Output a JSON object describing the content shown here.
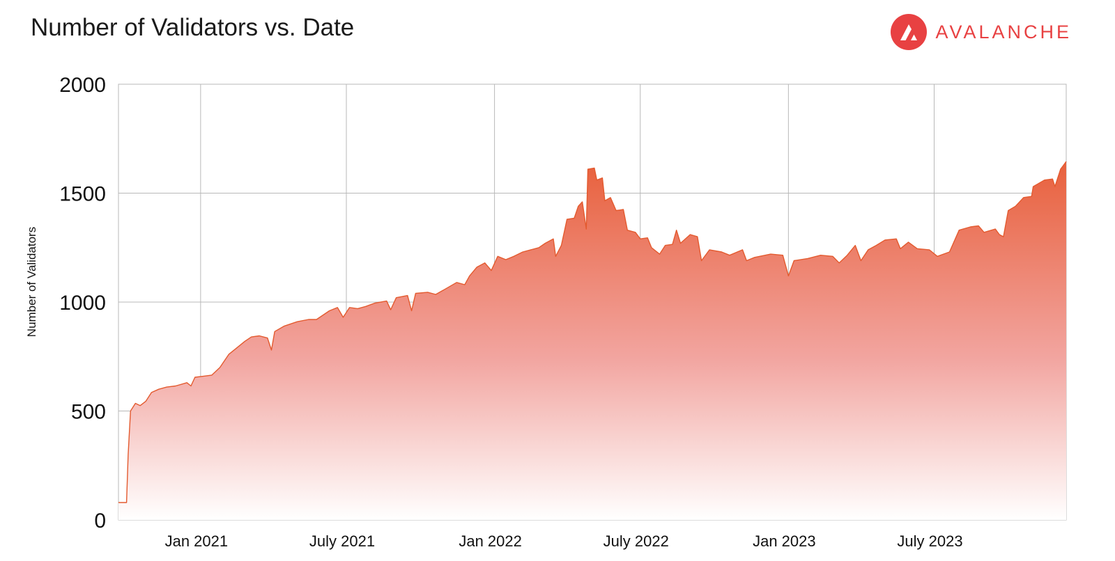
{
  "header": {
    "title": "Number of Validators vs. Date",
    "brand": "AVALANCHE"
  },
  "colors": {
    "brand_red": "#e84142",
    "line": "#e35a2f",
    "fill_top": "#e8603c",
    "fill_bottom": "#fde8ee",
    "grid": "#b8b8b8"
  },
  "chart_data": {
    "type": "area",
    "title": "Number of Validators vs. Date",
    "xlabel": "",
    "ylabel": "Number of Validators",
    "ylim": [
      0,
      2000
    ],
    "yticks": [
      0,
      500,
      1000,
      1500,
      2000
    ],
    "xlim": [
      "2020-09-21",
      "2023-12-12"
    ],
    "xticks": [
      {
        "date": "2021-01-01",
        "label": "Jan 2021"
      },
      {
        "date": "2021-07-01",
        "label": "July 2021"
      },
      {
        "date": "2022-01-01",
        "label": "Jan 2022"
      },
      {
        "date": "2022-07-01",
        "label": "July 2022"
      },
      {
        "date": "2023-01-01",
        "label": "Jan 2023"
      },
      {
        "date": "2023-07-01",
        "label": "July 2023"
      }
    ],
    "grid": true,
    "series": [
      {
        "points": [
          [
            "2020-09-21",
            80
          ],
          [
            "2020-10-01",
            80
          ],
          [
            "2020-10-03",
            300
          ],
          [
            "2020-10-06",
            500
          ],
          [
            "2020-10-12",
            535
          ],
          [
            "2020-10-18",
            525
          ],
          [
            "2020-10-25",
            545
          ],
          [
            "2020-11-01",
            585
          ],
          [
            "2020-11-10",
            600
          ],
          [
            "2020-11-20",
            610
          ],
          [
            "2020-12-01",
            615
          ],
          [
            "2020-12-15",
            630
          ],
          [
            "2020-12-20",
            615
          ],
          [
            "2020-12-25",
            655
          ],
          [
            "2021-01-05",
            660
          ],
          [
            "2021-01-15",
            665
          ],
          [
            "2021-01-25",
            700
          ],
          [
            "2021-02-05",
            760
          ],
          [
            "2021-02-15",
            790
          ],
          [
            "2021-02-25",
            820
          ],
          [
            "2021-03-05",
            840
          ],
          [
            "2021-03-15",
            845
          ],
          [
            "2021-03-25",
            835
          ],
          [
            "2021-03-30",
            780
          ],
          [
            "2021-04-03",
            865
          ],
          [
            "2021-04-15",
            890
          ],
          [
            "2021-05-01",
            910
          ],
          [
            "2021-05-15",
            920
          ],
          [
            "2021-05-25",
            920
          ],
          [
            "2021-06-10",
            960
          ],
          [
            "2021-06-20",
            975
          ],
          [
            "2021-06-27",
            930
          ],
          [
            "2021-07-05",
            975
          ],
          [
            "2021-07-15",
            970
          ],
          [
            "2021-07-25",
            980
          ],
          [
            "2021-08-05",
            995
          ],
          [
            "2021-08-20",
            1005
          ],
          [
            "2021-08-25",
            965
          ],
          [
            "2021-09-01",
            1020
          ],
          [
            "2021-09-15",
            1030
          ],
          [
            "2021-09-20",
            960
          ],
          [
            "2021-09-25",
            1040
          ],
          [
            "2021-10-10",
            1045
          ],
          [
            "2021-10-20",
            1035
          ],
          [
            "2021-11-01",
            1060
          ],
          [
            "2021-11-15",
            1090
          ],
          [
            "2021-11-25",
            1080
          ],
          [
            "2021-12-01",
            1120
          ],
          [
            "2021-12-10",
            1160
          ],
          [
            "2021-12-20",
            1180
          ],
          [
            "2021-12-28",
            1145
          ],
          [
            "2022-01-05",
            1210
          ],
          [
            "2022-01-15",
            1195
          ],
          [
            "2022-01-25",
            1210
          ],
          [
            "2022-02-05",
            1230
          ],
          [
            "2022-02-15",
            1240
          ],
          [
            "2022-02-25",
            1250
          ],
          [
            "2022-03-05",
            1270
          ],
          [
            "2022-03-15",
            1290
          ],
          [
            "2022-03-18",
            1210
          ],
          [
            "2022-03-25",
            1260
          ],
          [
            "2022-04-01",
            1380
          ],
          [
            "2022-04-10",
            1385
          ],
          [
            "2022-04-15",
            1440
          ],
          [
            "2022-04-20",
            1460
          ],
          [
            "2022-04-25",
            1335
          ],
          [
            "2022-04-27",
            1610
          ],
          [
            "2022-05-05",
            1615
          ],
          [
            "2022-05-08",
            1560
          ],
          [
            "2022-05-15",
            1570
          ],
          [
            "2022-05-18",
            1465
          ],
          [
            "2022-05-25",
            1480
          ],
          [
            "2022-06-01",
            1420
          ],
          [
            "2022-06-10",
            1425
          ],
          [
            "2022-06-15",
            1330
          ],
          [
            "2022-06-25",
            1320
          ],
          [
            "2022-07-01",
            1290
          ],
          [
            "2022-07-10",
            1295
          ],
          [
            "2022-07-15",
            1250
          ],
          [
            "2022-07-25",
            1220
          ],
          [
            "2022-08-01",
            1260
          ],
          [
            "2022-08-10",
            1265
          ],
          [
            "2022-08-15",
            1330
          ],
          [
            "2022-08-20",
            1270
          ],
          [
            "2022-09-01",
            1310
          ],
          [
            "2022-09-10",
            1300
          ],
          [
            "2022-09-15",
            1190
          ],
          [
            "2022-09-25",
            1240
          ],
          [
            "2022-10-10",
            1230
          ],
          [
            "2022-10-20",
            1215
          ],
          [
            "2022-11-05",
            1240
          ],
          [
            "2022-11-10",
            1190
          ],
          [
            "2022-11-20",
            1205
          ],
          [
            "2022-12-10",
            1220
          ],
          [
            "2022-12-25",
            1215
          ],
          [
            "2023-01-01",
            1120
          ],
          [
            "2023-01-08",
            1190
          ],
          [
            "2023-01-25",
            1200
          ],
          [
            "2023-02-10",
            1215
          ],
          [
            "2023-02-25",
            1210
          ],
          [
            "2023-03-05",
            1180
          ],
          [
            "2023-03-15",
            1215
          ],
          [
            "2023-03-25",
            1260
          ],
          [
            "2023-04-01",
            1190
          ],
          [
            "2023-04-10",
            1240
          ],
          [
            "2023-04-20",
            1260
          ],
          [
            "2023-05-01",
            1285
          ],
          [
            "2023-05-15",
            1290
          ],
          [
            "2023-05-20",
            1245
          ],
          [
            "2023-05-30",
            1275
          ],
          [
            "2023-06-10",
            1245
          ],
          [
            "2023-06-25",
            1240
          ],
          [
            "2023-07-05",
            1210
          ],
          [
            "2023-07-20",
            1230
          ],
          [
            "2023-08-01",
            1330
          ],
          [
            "2023-08-15",
            1345
          ],
          [
            "2023-08-25",
            1350
          ],
          [
            "2023-09-01",
            1320
          ],
          [
            "2023-09-15",
            1335
          ],
          [
            "2023-09-20",
            1310
          ],
          [
            "2023-09-25",
            1300
          ],
          [
            "2023-10-01",
            1420
          ],
          [
            "2023-10-10",
            1440
          ],
          [
            "2023-10-20",
            1480
          ],
          [
            "2023-10-30",
            1485
          ],
          [
            "2023-11-01",
            1530
          ],
          [
            "2023-11-15",
            1560
          ],
          [
            "2023-11-25",
            1565
          ],
          [
            "2023-11-28",
            1530
          ],
          [
            "2023-12-05",
            1610
          ],
          [
            "2023-12-12",
            1645
          ]
        ]
      }
    ]
  }
}
